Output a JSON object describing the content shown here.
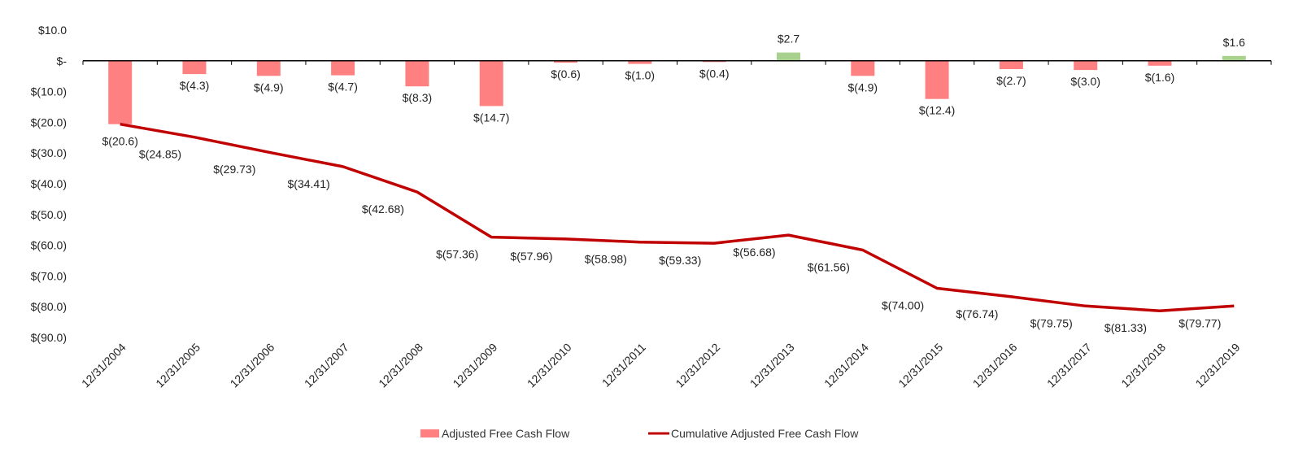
{
  "chart_data": {
    "type": "bar+line",
    "title": "",
    "xlabel": "",
    "ylabel": "",
    "ylim": [
      -90,
      10
    ],
    "yticks": [
      10,
      0,
      -10,
      -20,
      -30,
      -40,
      -50,
      -60,
      -70,
      -80,
      -90
    ],
    "ytick_labels": [
      "$10.0",
      "$-",
      "$(10.0)",
      "$(20.0)",
      "$(30.0)",
      "$(40.0)",
      "$(50.0)",
      "$(60.0)",
      "$(70.0)",
      "$(80.0)",
      "$(90.0)"
    ],
    "categories": [
      "12/31/2004",
      "12/31/2005",
      "12/31/2006",
      "12/31/2007",
      "12/31/2008",
      "12/31/2009",
      "12/31/2010",
      "12/31/2011",
      "12/31/2012",
      "12/31/2013",
      "12/31/2014",
      "12/31/2015",
      "12/31/2016",
      "12/31/2017",
      "12/31/2018",
      "12/31/2019"
    ],
    "legend_position": "bottom",
    "grid": false,
    "series": [
      {
        "name": "Adjusted Free Cash Flow",
        "kind": "bar",
        "color": "#ff8080",
        "positive_color": "#a9d18e",
        "values": [
          -20.6,
          -4.3,
          -4.9,
          -4.7,
          -8.3,
          -14.7,
          -0.6,
          -1.0,
          -0.4,
          2.7,
          -4.9,
          -12.4,
          -2.7,
          -3.0,
          -1.6,
          1.6
        ],
        "labels": [
          "$(20.6)",
          "$(4.3)",
          "$(4.9)",
          "$(4.7)",
          "$(8.3)",
          "$(14.7)",
          "$(0.6)",
          "$(1.0)",
          "$(0.4)",
          "$2.7",
          "$(4.9)",
          "$(12.4)",
          "$(2.7)",
          "$(3.0)",
          "$(1.6)",
          "$1.6"
        ]
      },
      {
        "name": "Cumulative Adjusted Free Cash Flow",
        "kind": "line",
        "color": "#c00000",
        "values": [
          -20.6,
          -24.85,
          -29.73,
          -34.41,
          -42.68,
          -57.36,
          -57.96,
          -58.98,
          -59.33,
          -56.68,
          -61.56,
          -74.0,
          -76.74,
          -79.75,
          -81.33,
          -79.77
        ],
        "labels": [
          "",
          "$(24.85)",
          "$(29.73)",
          "$(34.41)",
          "$(42.68)",
          "$(57.36)",
          "$(57.96)",
          "$(58.98)",
          "$(59.33)",
          "$(56.68)",
          "$(61.56)",
          "$(74.00)",
          "$(76.74)",
          "$(79.75)",
          "$(81.33)",
          "$(79.77)"
        ]
      }
    ]
  }
}
